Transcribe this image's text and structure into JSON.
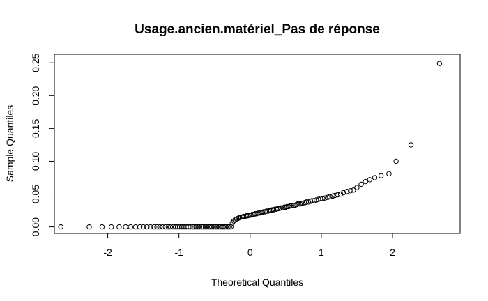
{
  "chart_data": {
    "type": "scatter",
    "title": "Usage.ancien.matériel_Pas de réponse",
    "xlabel": "Theoretical Quantiles",
    "ylabel": "Sample Quantiles",
    "xlim": [
      -2.75,
      2.95
    ],
    "ylim": [
      -0.01,
      0.263
    ],
    "xticks": [
      -2,
      -1,
      0,
      1,
      2
    ],
    "xtick_labels": [
      "-2",
      "-1",
      "0",
      "1",
      "2"
    ],
    "yticks": [
      0.0,
      0.05,
      0.1,
      0.15,
      0.2,
      0.25
    ],
    "ytick_labels": [
      "0.00",
      "0.05",
      "0.10",
      "0.15",
      "0.20",
      "0.25"
    ],
    "grid": false,
    "legend": "none",
    "marker": "open-circle",
    "colors": {
      "points": "#000000",
      "axes": "#000000",
      "background": "#ffffff"
    },
    "points": [
      [
        -2.66,
        0.0
      ],
      [
        -2.26,
        0.0
      ],
      [
        -2.08,
        0.0
      ],
      [
        -1.95,
        0.0
      ],
      [
        -1.84,
        0.0
      ],
      [
        -1.75,
        0.0
      ],
      [
        -1.68,
        0.0
      ],
      [
        -1.61,
        0.0
      ],
      [
        -1.55,
        0.0
      ],
      [
        -1.5,
        0.0
      ],
      [
        -1.45,
        0.0
      ],
      [
        -1.4,
        0.0
      ],
      [
        -1.35,
        0.0
      ],
      [
        -1.31,
        0.0
      ],
      [
        -1.27,
        0.0
      ],
      [
        -1.23,
        0.0
      ],
      [
        -1.19,
        0.0
      ],
      [
        -1.15,
        0.0
      ],
      [
        -1.12,
        0.0
      ],
      [
        -1.08,
        0.0
      ],
      [
        -1.05,
        0.0
      ],
      [
        -1.02,
        0.0
      ],
      [
        -0.99,
        0.0
      ],
      [
        -0.96,
        0.0
      ],
      [
        -0.93,
        0.0
      ],
      [
        -0.9,
        0.0
      ],
      [
        -0.87,
        0.0
      ],
      [
        -0.84,
        0.0
      ],
      [
        -0.81,
        0.0
      ],
      [
        -0.79,
        0.0
      ],
      [
        -0.76,
        0.0
      ],
      [
        -0.73,
        0.0
      ],
      [
        -0.71,
        0.0
      ],
      [
        -0.68,
        0.0
      ],
      [
        -0.66,
        0.0
      ],
      [
        -0.63,
        0.0
      ],
      [
        -0.61,
        0.0
      ],
      [
        -0.58,
        0.0
      ],
      [
        -0.56,
        0.0
      ],
      [
        -0.54,
        0.0
      ],
      [
        -0.51,
        0.0
      ],
      [
        -0.49,
        0.0
      ],
      [
        -0.47,
        0.0
      ],
      [
        -0.44,
        0.0
      ],
      [
        -0.42,
        0.0
      ],
      [
        -0.4,
        0.0
      ],
      [
        -0.38,
        0.0
      ],
      [
        -0.36,
        0.0
      ],
      [
        -0.34,
        0.0
      ],
      [
        -0.31,
        0.0
      ],
      [
        -0.29,
        0.0
      ],
      [
        -0.27,
        0.0
      ],
      [
        -0.25,
        0.006
      ],
      [
        -0.23,
        0.009
      ],
      [
        -0.21,
        0.011
      ],
      [
        -0.19,
        0.012
      ],
      [
        -0.17,
        0.013
      ],
      [
        -0.15,
        0.014
      ],
      [
        -0.13,
        0.015
      ],
      [
        -0.11,
        0.015
      ],
      [
        -0.09,
        0.016
      ],
      [
        -0.07,
        0.016
      ],
      [
        -0.05,
        0.017
      ],
      [
        -0.03,
        0.017
      ],
      [
        -0.01,
        0.018
      ],
      [
        0.01,
        0.018
      ],
      [
        0.03,
        0.019
      ],
      [
        0.05,
        0.019
      ],
      [
        0.07,
        0.02
      ],
      [
        0.09,
        0.02
      ],
      [
        0.11,
        0.021
      ],
      [
        0.13,
        0.021
      ],
      [
        0.15,
        0.022
      ],
      [
        0.17,
        0.022
      ],
      [
        0.19,
        0.023
      ],
      [
        0.21,
        0.023
      ],
      [
        0.23,
        0.024
      ],
      [
        0.25,
        0.024
      ],
      [
        0.27,
        0.025
      ],
      [
        0.29,
        0.025
      ],
      [
        0.31,
        0.026
      ],
      [
        0.33,
        0.026
      ],
      [
        0.35,
        0.027
      ],
      [
        0.37,
        0.027
      ],
      [
        0.39,
        0.028
      ],
      [
        0.41,
        0.028
      ],
      [
        0.43,
        0.029
      ],
      [
        0.46,
        0.029
      ],
      [
        0.48,
        0.03
      ],
      [
        0.5,
        0.03
      ],
      [
        0.52,
        0.031
      ],
      [
        0.54,
        0.031
      ],
      [
        0.56,
        0.032
      ],
      [
        0.58,
        0.032
      ],
      [
        0.61,
        0.033
      ],
      [
        0.63,
        0.033
      ],
      [
        0.65,
        0.034
      ],
      [
        0.67,
        0.035
      ],
      [
        0.7,
        0.035
      ],
      [
        0.72,
        0.036
      ],
      [
        0.74,
        0.036
      ],
      [
        0.77,
        0.037
      ],
      [
        0.79,
        0.038
      ],
      [
        0.82,
        0.038
      ],
      [
        0.85,
        0.039
      ],
      [
        0.87,
        0.04
      ],
      [
        0.9,
        0.04
      ],
      [
        0.93,
        0.041
      ],
      [
        0.96,
        0.042
      ],
      [
        0.99,
        0.043
      ],
      [
        1.02,
        0.043
      ],
      [
        1.05,
        0.044
      ],
      [
        1.09,
        0.045
      ],
      [
        1.12,
        0.046
      ],
      [
        1.16,
        0.047
      ],
      [
        1.19,
        0.048
      ],
      [
        1.23,
        0.049
      ],
      [
        1.27,
        0.05
      ],
      [
        1.31,
        0.052
      ],
      [
        1.36,
        0.054
      ],
      [
        1.41,
        0.055
      ],
      [
        1.45,
        0.056
      ],
      [
        1.5,
        0.06
      ],
      [
        1.56,
        0.065
      ],
      [
        1.62,
        0.069
      ],
      [
        1.68,
        0.072
      ],
      [
        1.75,
        0.075
      ],
      [
        1.84,
        0.078
      ],
      [
        1.95,
        0.081
      ],
      [
        2.05,
        0.1
      ],
      [
        2.26,
        0.125
      ],
      [
        2.66,
        0.249
      ]
    ]
  }
}
